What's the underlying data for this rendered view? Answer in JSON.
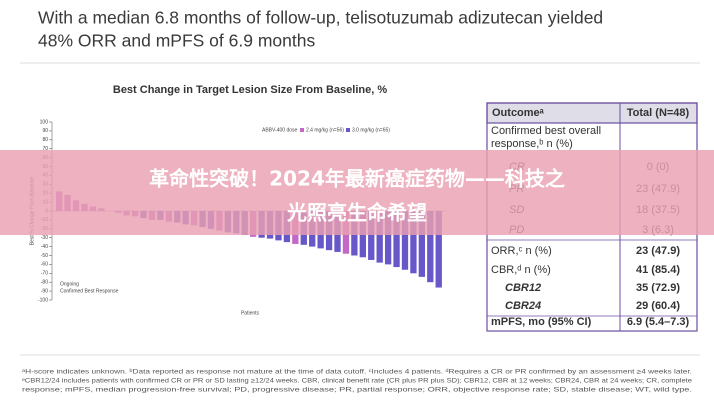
{
  "header": {
    "title_lines": [
      "With a median 6.8 months of follow-up, telisotuzumab adizutecan yielded",
      "48% ORR and mPFS of 6.9 months"
    ]
  },
  "chart_data": {
    "type": "bar",
    "title": "Best Change in Target Lesion Size From Baseline, %",
    "x_label": "Patients",
    "y_label": "Best % Change From Baseline",
    "legend_title": "ABBV-400 dose",
    "series_names": [
      "2.4 mg/kg (n=56)",
      "3.0 mg/kg (n=65)"
    ],
    "series_colors": [
      "#c468c8",
      "#6757c9"
    ],
    "marker_legend": [
      "Ongoing",
      "Confirmed Best Response"
    ],
    "values": [
      22,
      18,
      12,
      8,
      5,
      3,
      0,
      -2,
      -5,
      -6,
      -8,
      -10,
      -10,
      -12,
      -13,
      -15,
      -16,
      -18,
      -20,
      -22,
      -24,
      -25,
      -27,
      -29,
      -30,
      -31,
      -33,
      -35,
      -37,
      -38,
      -40,
      -42,
      -44,
      -46,
      -48,
      -50,
      -52,
      -55,
      -58,
      -60,
      -63,
      -66,
      -70,
      -74,
      -80,
      -86
    ],
    "colors": [
      "#c468c8",
      "#c468c8",
      "#c468c8",
      "#c468c8",
      "#c468c8",
      "#c468c8",
      "#6757c9",
      "#c468c8",
      "#c468c8",
      "#c468c8",
      "#6757c9",
      "#c468c8",
      "#6757c9",
      "#c468c8",
      "#6757c9",
      "#6757c9",
      "#c468c8",
      "#6757c9",
      "#6757c9",
      "#c468c8",
      "#6757c9",
      "#6757c9",
      "#6757c9",
      "#c468c8",
      "#6757c9",
      "#6757c9",
      "#6757c9",
      "#6757c9",
      "#c468c8",
      "#6757c9",
      "#6757c9",
      "#6757c9",
      "#6757c9",
      "#6757c9",
      "#c468c8",
      "#6757c9",
      "#6757c9",
      "#6757c9",
      "#6757c9",
      "#6757c9",
      "#6757c9",
      "#6757c9",
      "#6757c9",
      "#6757c9",
      "#6757c9",
      "#6757c9"
    ],
    "ylim": [
      -100,
      100
    ],
    "yticks": [
      100,
      90,
      80,
      70,
      60,
      50,
      40,
      30,
      20,
      10,
      0,
      -10,
      -20,
      -30,
      -40,
      -50,
      -60,
      -70,
      -80,
      -90,
      -100
    ]
  },
  "table": {
    "header": [
      "Outcomeᵃ",
      "Total (N=48)"
    ],
    "rows": [
      [
        "Confirmed best overall response,ᵇ n (%)",
        null
      ],
      [
        "CR",
        "0 (0)"
      ],
      [
        "PR",
        "23 (47.9)"
      ],
      [
        "SD",
        "18 (37.5)"
      ],
      [
        "PD",
        "3 (6.3)"
      ],
      [
        "ORR,ᶜ n (%)",
        "23 (47.9)"
      ],
      [
        "CBR,ᵈ n (%)",
        "41 (85.4)"
      ],
      [
        "CBR12",
        "35 (72.9)"
      ],
      [
        "CBR24",
        "29 (60.4)"
      ],
      [
        "mPFS, mo (95% CI)",
        "6.9 (5.4–7.3)"
      ]
    ]
  },
  "footnotes": [
    "ᵃH-score indicates unknown. ᵇData reported as response not mature at the time of data cutoff. ᶜIncludes 4 patients. ᵈRequires a CR or PR confirmed by an assessment ≥4 weeks later.",
    "ᵉCBR12/24 includes patients with confirmed CR or PR or SD lasting ≥12/24 weeks. CBR, clinical benefit rate (CR plus PR plus SD); CBR12, CBR at 12 weeks; CBR24, CBR at 24 weeks; CR, complete",
    "response; mPFS, median progression-free survival; PD, progressive disease; PR, partial response; ORR, objective response rate; SD, stable disease; WT, wild type."
  ],
  "banner": {
    "lines": [
      "革命性突破！2024年最新癌症药物——科技之",
      "光照亮生命希望"
    ]
  }
}
